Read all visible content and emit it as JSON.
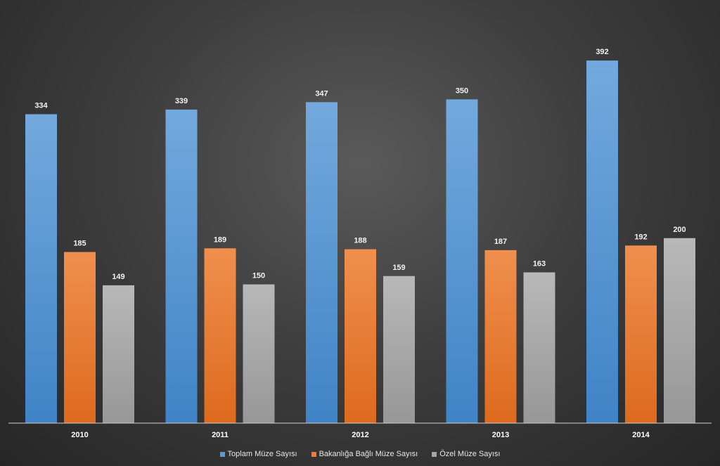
{
  "chart_data": {
    "type": "bar",
    "categories": [
      "2010",
      "2011",
      "2012",
      "2013",
      "2014"
    ],
    "series": [
      {
        "name": "Toplam Müze Sayısı",
        "values": [
          334,
          339,
          347,
          350,
          392
        ],
        "color": "#5b9bd5"
      },
      {
        "name": "Bakanlığa Bağlı Müze Sayısı",
        "values": [
          185,
          189,
          188,
          187,
          192
        ],
        "color": "#ed7d31"
      },
      {
        "name": "Özel Müze Sayısı",
        "values": [
          149,
          150,
          159,
          163,
          200
        ],
        "color": "#a5a5a5"
      }
    ],
    "ylim": [
      0,
      400
    ],
    "grid": false,
    "legend_position": "bottom",
    "data_labels": true
  }
}
